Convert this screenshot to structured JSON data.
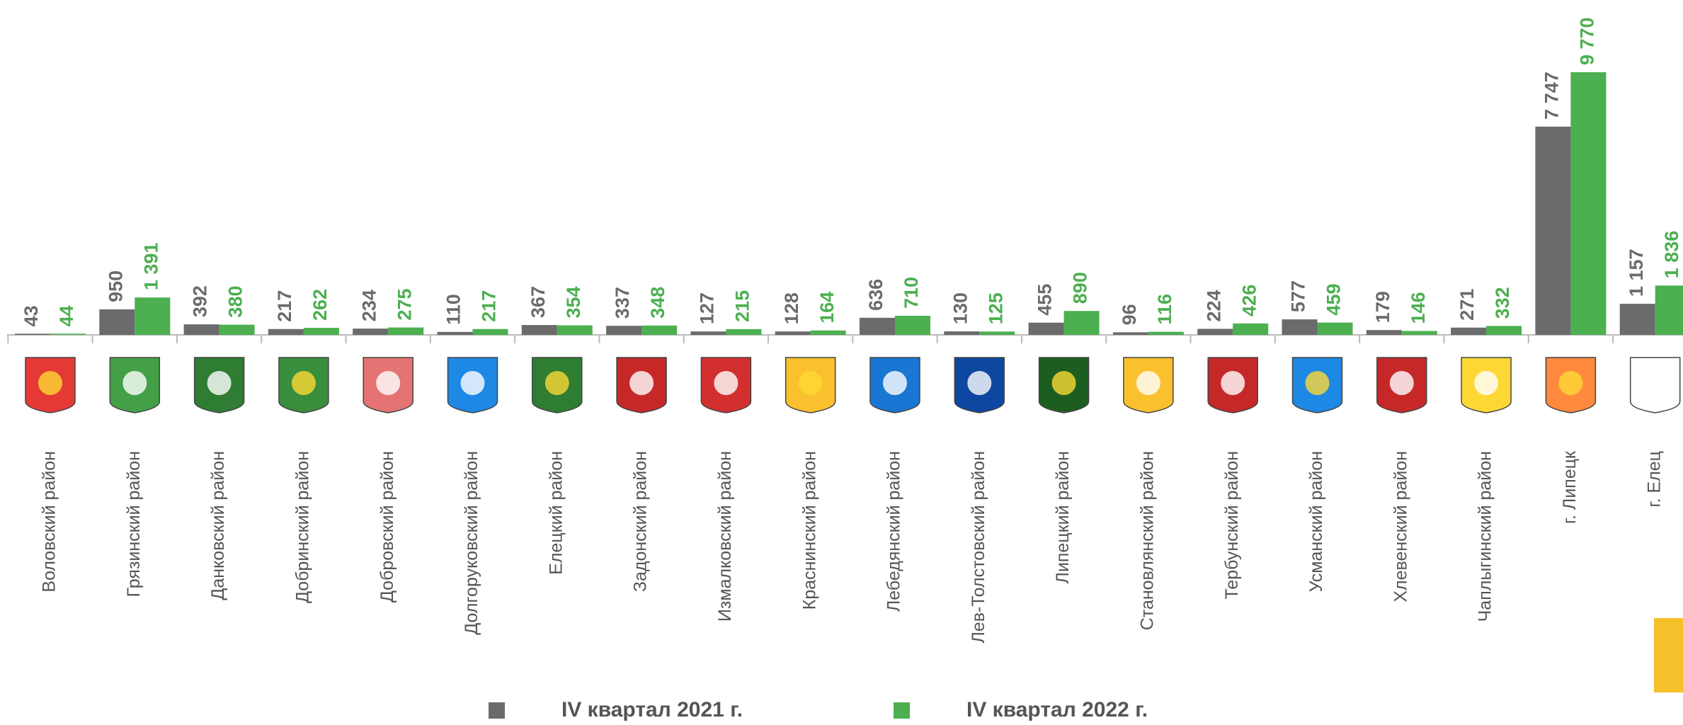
{
  "chart_data": {
    "type": "bar",
    "categories": [
      "Воловский  район",
      "Грязинский  район",
      "Данковский  район",
      "Добринский  район",
      "Добровский  район",
      "Долгоруковский  район",
      "Елецкий  район",
      "Задонский  район",
      "Измалковский  район",
      "Краснинский  район",
      "Лебедянский  район",
      "Лев-Толстовский  район",
      "Липецкий  район",
      "Становлянский  район",
      "Тербунский  район",
      "Усманский  район",
      "Хлевенский  район",
      "Чаплыгинский  район",
      "г. Липецк",
      "г. Елец"
    ],
    "series": [
      {
        "name": "IV квартал 2021 г.",
        "color": "#6b6b6b",
        "values": [
          43,
          950,
          392,
          217,
          234,
          110,
          367,
          337,
          127,
          128,
          636,
          130,
          455,
          96,
          224,
          577,
          179,
          271,
          7747,
          1157
        ],
        "value_labels": [
          "43",
          "950",
          "392",
          "217",
          "234",
          "110",
          "367",
          "337",
          "127",
          "128",
          "636",
          "130",
          "455",
          "96",
          "224",
          "577",
          "179",
          "271",
          "7 747",
          "1 157"
        ]
      },
      {
        "name": "IV квартал 2022 г.",
        "color": "#4caf50",
        "values": [
          44,
          1391,
          380,
          262,
          275,
          217,
          354,
          348,
          215,
          164,
          710,
          125,
          890,
          116,
          426,
          459,
          146,
          332,
          9770,
          1836
        ],
        "value_labels": [
          "44",
          "1 391",
          "380",
          "262",
          "275",
          "217",
          "354",
          "348",
          "215",
          "164",
          "710",
          "125",
          "890",
          "116",
          "426",
          "459",
          "146",
          "332",
          "9 770",
          "1 836"
        ]
      }
    ]
  }
}
